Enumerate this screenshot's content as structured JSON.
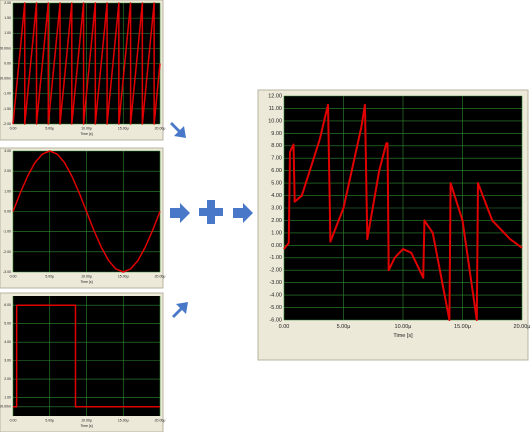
{
  "chart_data": [
    {
      "type": "line",
      "xlabel": "Time [s]",
      "color": "#e00000",
      "x": [
        0,
        1.6,
        1.6,
        3.2,
        3.2,
        4.8,
        4.8,
        6.4,
        6.4,
        8,
        8,
        9.6,
        9.6,
        11.2,
        11.2,
        12.8,
        12.8,
        14.4,
        14.4,
        16,
        16,
        17.6,
        17.6,
        19.2,
        19.2,
        20
      ],
      "values": [
        -2,
        2,
        -2,
        2,
        -2,
        2,
        -2,
        2,
        -2,
        2,
        -2,
        2,
        -2,
        2,
        -2,
        2,
        -2,
        2,
        -2,
        2,
        -2,
        2,
        -2,
        2,
        -2,
        0
      ],
      "xlim": [
        0,
        20
      ],
      "ylim": [
        -2,
        2
      ],
      "xticks": [
        {
          "value": 0,
          "label": "0.00"
        },
        {
          "value": 5,
          "label": "5.00μ"
        },
        {
          "value": 10,
          "label": "10.00μ"
        },
        {
          "value": 15,
          "label": "15.00μ"
        },
        {
          "value": 20,
          "label": "20.00μ"
        }
      ],
      "yticks": [
        {
          "value": 2,
          "label": "2.00"
        },
        {
          "value": 1.5,
          "label": "1.50"
        },
        {
          "value": 1,
          "label": "1.00"
        },
        {
          "value": 0.5,
          "label": "500.00m"
        },
        {
          "value": 0,
          "label": "0.00"
        },
        {
          "value": -0.5,
          "label": "-500.00m"
        },
        {
          "value": -1,
          "label": "-1.00"
        },
        {
          "value": -1.5,
          "label": "-1.50"
        },
        {
          "value": -2,
          "label": "-2.00"
        }
      ],
      "grid": true
    },
    {
      "type": "line",
      "xlabel": "Time [s]",
      "color": "#e00000",
      "x": [
        0,
        1,
        2,
        3,
        4,
        5,
        6,
        7,
        8,
        9,
        10,
        11,
        12,
        13,
        14,
        15,
        16,
        17,
        18,
        19,
        20
      ],
      "values": [
        0,
        0.93,
        1.76,
        2.43,
        2.85,
        3,
        2.85,
        2.43,
        1.76,
        0.93,
        0,
        -0.93,
        -1.76,
        -2.43,
        -2.85,
        -3,
        -2.85,
        -2.43,
        -1.76,
        -0.93,
        0
      ],
      "xlim": [
        0,
        20
      ],
      "ylim": [
        -3,
        3
      ],
      "xticks": [
        {
          "value": 0,
          "label": "0.00"
        },
        {
          "value": 5,
          "label": "5.00μ"
        },
        {
          "value": 10,
          "label": "10.00μ"
        },
        {
          "value": 15,
          "label": "15.00μ"
        },
        {
          "value": 20,
          "label": "20.00μ"
        }
      ],
      "yticks": [
        {
          "value": 3,
          "label": "3.00"
        },
        {
          "value": 2,
          "label": "2.00"
        },
        {
          "value": 1,
          "label": "1.00"
        },
        {
          "value": 0,
          "label": "0.00"
        },
        {
          "value": -1,
          "label": "-1.00"
        },
        {
          "value": -2,
          "label": "-2.00"
        },
        {
          "value": -3,
          "label": "-3.00"
        }
      ],
      "grid": true
    },
    {
      "type": "line",
      "xlabel": "Time [s]",
      "color": "#e00000",
      "x": [
        0,
        0.5,
        0.5,
        8.5,
        8.5,
        20
      ],
      "values": [
        0.5,
        0.5,
        6,
        6,
        0.5,
        0.5
      ],
      "xlim": [
        0,
        20
      ],
      "ylim": [
        0,
        6.5
      ],
      "xticks": [
        {
          "value": 0,
          "label": "0.00"
        },
        {
          "value": 5,
          "label": "5.00μ"
        },
        {
          "value": 10,
          "label": "10.00μ"
        },
        {
          "value": 15,
          "label": "15.00μ"
        },
        {
          "value": 20,
          "label": "20.00μ"
        }
      ],
      "yticks": [
        {
          "value": 6,
          "label": "6.00"
        },
        {
          "value": 5,
          "label": "5.00"
        },
        {
          "value": 4,
          "label": "4.00"
        },
        {
          "value": 3,
          "label": "3.00"
        },
        {
          "value": 2,
          "label": "2.00"
        },
        {
          "value": 1,
          "label": "1.00"
        },
        {
          "value": 0.5,
          "label": "500.00m"
        }
      ],
      "grid": true
    },
    {
      "type": "line",
      "xlabel": "Time [s]",
      "color": "#e00000",
      "x": [
        0,
        0.4,
        0.5,
        0.8,
        0.9,
        1.5,
        3.0,
        3.7,
        3.9,
        5.0,
        6.5,
        6.8,
        7.0,
        8.0,
        8.6,
        8.7,
        8.8,
        9.3,
        10.0,
        10.7,
        11.7,
        11.8,
        12.5,
        13.9,
        14.0,
        15.0,
        16.2,
        16.3,
        17.5,
        19.0,
        20.0
      ],
      "values": [
        -0.3,
        0.2,
        7.5,
        8.1,
        3.5,
        4.0,
        8.5,
        11.3,
        0.3,
        3.0,
        9.5,
        11.3,
        0.5,
        6.0,
        8.2,
        8.2,
        -2.0,
        -1.0,
        -0.3,
        -0.6,
        -2.6,
        2.0,
        1.0,
        -6.0,
        5.0,
        2.0,
        -6.0,
        5.0,
        2.0,
        0.5,
        -0.2
      ],
      "xlim": [
        0,
        20
      ],
      "ylim": [
        -6,
        12
      ],
      "xticks": [
        {
          "value": 0,
          "label": "0.00"
        },
        {
          "value": 5,
          "label": "5.00μ"
        },
        {
          "value": 10,
          "label": "10.00μ"
        },
        {
          "value": 15,
          "label": "15.00μ"
        },
        {
          "value": 20,
          "label": "20.00μ"
        }
      ],
      "yticks": [
        {
          "value": 12,
          "label": "12.00"
        },
        {
          "value": 11,
          "label": "11.00"
        },
        {
          "value": 10,
          "label": "10.00"
        },
        {
          "value": 9,
          "label": "9.00"
        },
        {
          "value": 8,
          "label": "8.00"
        },
        {
          "value": 7,
          "label": "7.00"
        },
        {
          "value": 6,
          "label": "6.00"
        },
        {
          "value": 5,
          "label": "5.00"
        },
        {
          "value": 4,
          "label": "4.00"
        },
        {
          "value": 3,
          "label": "3.00"
        },
        {
          "value": 2,
          "label": "2.00"
        },
        {
          "value": 1,
          "label": "1.00"
        },
        {
          "value": 0,
          "label": "0.00"
        },
        {
          "value": -1,
          "label": "-1.00"
        },
        {
          "value": -2,
          "label": "-2.00"
        },
        {
          "value": -3,
          "label": "-3.00"
        },
        {
          "value": -4,
          "label": "-4.00"
        },
        {
          "value": -5,
          "label": "-5.00"
        },
        {
          "value": -6,
          "label": "-6.00"
        }
      ],
      "grid": true
    }
  ]
}
